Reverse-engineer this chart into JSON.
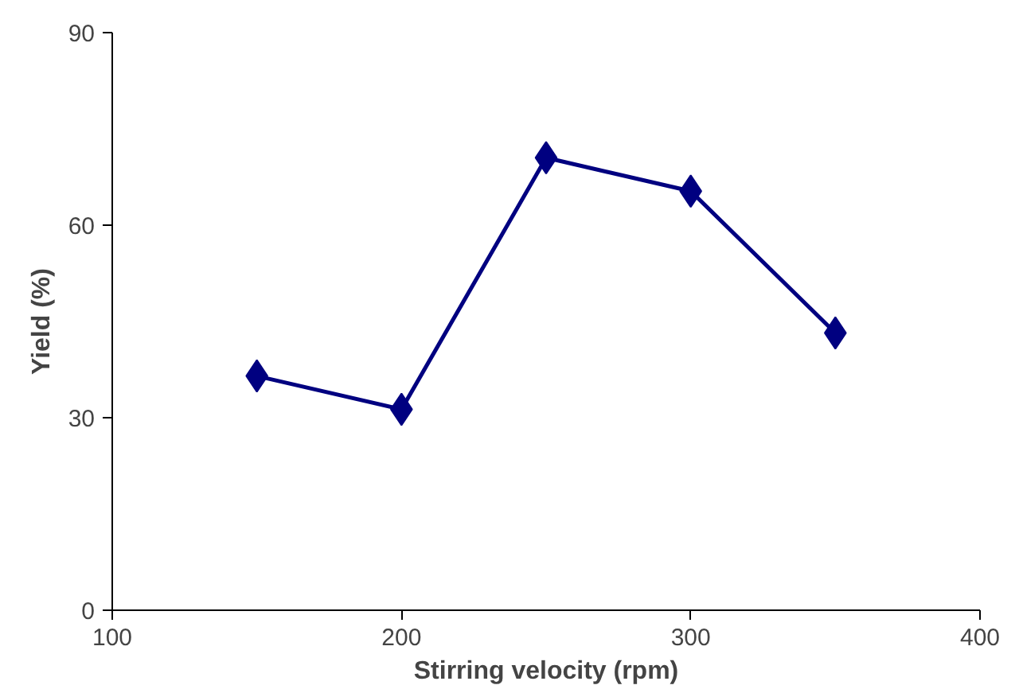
{
  "chart_data": {
    "type": "line",
    "xlabel": "Stirring velocity (rpm)",
    "ylabel": "Yield (%)",
    "x": [
      150,
      200,
      250,
      300,
      350
    ],
    "series": [
      {
        "color": "#000080",
        "values": [
          36.5,
          31.3,
          70.5,
          65.3,
          43.2
        ]
      }
    ],
    "xlim": [
      100,
      400
    ],
    "xticks": [
      100,
      200,
      300,
      400
    ],
    "ylim": [
      0,
      90
    ],
    "yticks": [
      0,
      30,
      60,
      90
    ],
    "marker": "diamond",
    "line_style": "solid"
  }
}
